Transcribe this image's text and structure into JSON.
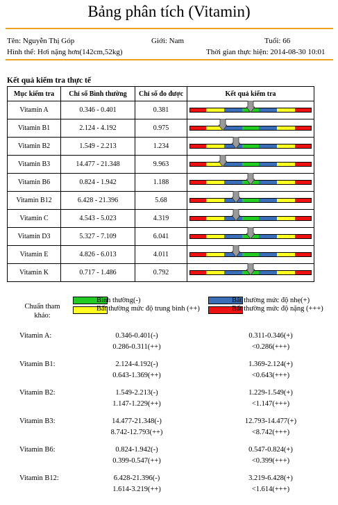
{
  "title": "Bảng phân tích (Vitamin)",
  "header": {
    "name": "Tên: Nguyễn Thị Góp",
    "gender": "Giới: Nam",
    "age": "Tuổi: 66",
    "body": "Hình thể: Hơi nặng hơn(142cm,52kg)",
    "time": "Thời gian thực hiện: 2014-08-30 10:01"
  },
  "section_title": "Kết quả kiểm tra thực tế",
  "table": {
    "headers": [
      "Mục kiểm tra",
      "Chỉ số Bình thường",
      "Chỉ số đo được",
      "Kết quả kiểm tra"
    ],
    "rows": [
      {
        "item": "Vitamin A",
        "normal": "0.346 - 0.401",
        "measured": "0.381",
        "level": 0.5
      },
      {
        "item": "Vitamin B1",
        "normal": "2.124 - 4.192",
        "measured": "0.975",
        "level": 0.27
      },
      {
        "item": "Vitamin B2",
        "normal": "1.549 - 2.213",
        "measured": "1.234",
        "level": 0.38
      },
      {
        "item": "Vitamin B3",
        "normal": "14.477 - 21.348",
        "measured": "9.963",
        "level": 0.27
      },
      {
        "item": "Vitamin B6",
        "normal": "0.824 - 1.942",
        "measured": "1.188",
        "level": 0.5
      },
      {
        "item": "Vitamin B12",
        "normal": "6.428 - 21.396",
        "measured": "5.68",
        "level": 0.38
      },
      {
        "item": "Vitamin C",
        "normal": "4.543 - 5.023",
        "measured": "4.319",
        "level": 0.38
      },
      {
        "item": "Vitamin D3",
        "normal": "5.327 - 7.109",
        "measured": "6.041",
        "level": 0.5
      },
      {
        "item": "Vitamin E",
        "normal": "4.826 - 6.013",
        "measured": "4.011",
        "level": 0.38
      },
      {
        "item": "Vitamin K",
        "normal": "0.717 - 1.486",
        "measured": "0.792",
        "level": 0.5
      }
    ]
  },
  "legend": {
    "label": "Chuẩn tham khảo:",
    "normal": "Bình thường(-)",
    "mild": "Bất thường mức độ nhẹ(+)",
    "moderate": "Bất thường mức độ trung bình (++)",
    "severe": "Bất thường mức độ nặng (+++)",
    "colors": {
      "green": "#22cc22",
      "blue": "#3a6fb8",
      "yellow": "#ffff22",
      "red": "#ee1111"
    }
  },
  "references": [
    {
      "name": "Vitamin A:",
      "normal": "0.346-0.401(-)",
      "mild": "0.311-0.346(+)",
      "moderate": "0.286-0.311(++)",
      "severe": "<0.286(+++)"
    },
    {
      "name": "Vitamin B1:",
      "normal": "2.124-4.192(-)",
      "mild": "1.369-2.124(+)",
      "moderate": "0.643-1.369(++)",
      "severe": "<0.643(+++)"
    },
    {
      "name": "Vitamin B2:",
      "normal": "1.549-2.213(-)",
      "mild": "1.229-1.549(+)",
      "moderate": "1.147-1.229(++)",
      "severe": "<1.147(+++)"
    },
    {
      "name": "Vitamin B3:",
      "normal": "14.477-21.348(-)",
      "mild": "12.793-14.477(+)",
      "moderate": "8.742-12.793(++)",
      "severe": "<8.742(+++)"
    },
    {
      "name": "Vitamin B6:",
      "normal": "0.824-1.942(-)",
      "mild": "0.547-0.824(+)",
      "moderate": "0.399-0.547(++)",
      "severe": "<0.399(+++)"
    },
    {
      "name": "Vitamin B12:",
      "normal": "6.428-21.396(-)",
      "mild": "3.219-6.428(+)",
      "moderate": "1.614-3.219(++)",
      "severe": "<1.614(+++)"
    }
  ]
}
